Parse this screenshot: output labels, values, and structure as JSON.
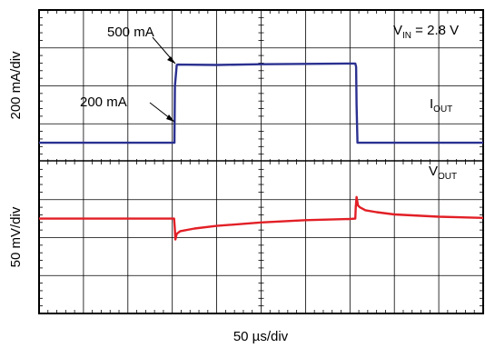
{
  "chart_data": [
    {
      "type": "line",
      "title": "",
      "xlabel": "50 µs/div",
      "ylabel": "200 mA/div",
      "x_divisions": 10,
      "y_divisions": 4,
      "grid": true,
      "annotations": [
        {
          "text": "500 mA"
        },
        {
          "text": "200 mA"
        },
        {
          "text": "V",
          "subscript": "IN",
          "suffix": " = 2.8 V"
        }
      ],
      "series": [
        {
          "name": "I",
          "name_subscript": "OUT",
          "color": "#2b3190",
          "x_div": [
            0,
            3.05,
            3.05,
            3.06,
            3.1,
            3.12,
            4,
            5,
            6,
            7,
            7.12,
            7.14,
            7.15,
            7.17,
            10
          ],
          "y_div": [
            0,
            0,
            0.15,
            1.5,
            2.05,
            2.06,
            2.05,
            2.07,
            2.08,
            2.09,
            2.09,
            2.0,
            1.0,
            0.0,
            0
          ]
        }
      ]
    },
    {
      "type": "line",
      "title": "",
      "xlabel": "50 µs/div",
      "ylabel": "50 mV/div",
      "x_divisions": 10,
      "y_divisions": 4,
      "grid": true,
      "series": [
        {
          "name": "V",
          "name_subscript": "OUT",
          "color": "#e21f26",
          "x_div": [
            0,
            3.04,
            3.06,
            3.07,
            3.1,
            3.18,
            3.5,
            4,
            5,
            6,
            7,
            7.12,
            7.13,
            7.15,
            7.18,
            7.22,
            7.35,
            7.6,
            8,
            9,
            10
          ],
          "y_div": [
            0,
            0,
            -0.3,
            -0.55,
            -0.4,
            -0.33,
            -0.26,
            -0.19,
            -0.1,
            -0.04,
            -0.01,
            0,
            0.3,
            0.57,
            0.35,
            0.3,
            0.22,
            0.17,
            0.11,
            0.05,
            0.02
          ]
        }
      ]
    }
  ]
}
